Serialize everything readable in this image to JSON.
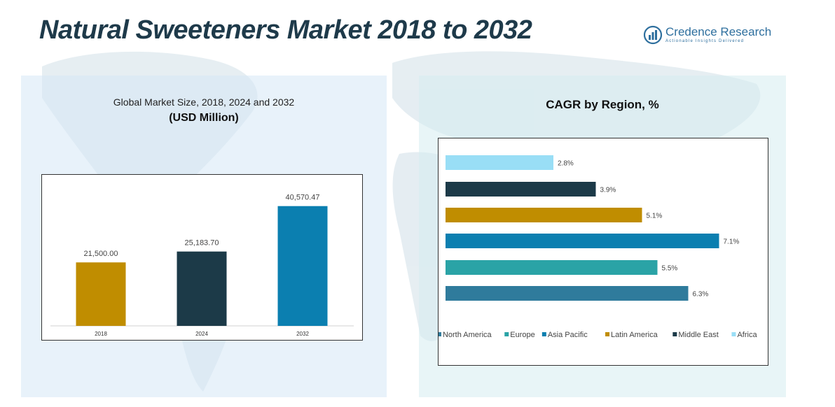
{
  "title": "Natural Sweeteners Market 2018 to 2032",
  "logo": {
    "name": "Credence Research",
    "tagline": "Actionable Insights Delivered",
    "icon": "bar-chart-logo-icon"
  },
  "colors": {
    "title": "#1e3a4a",
    "gold": "#c08d00",
    "navy": "#1c3a48",
    "blue": "#0b7fb0",
    "teal": "#2aa3a6",
    "steel": "#2f7b9c",
    "sky": "#99def6"
  },
  "left_panel": {
    "subtitle": "Global Market Size, 2018, 2024 and 2032",
    "unit": "(USD Million)"
  },
  "right_panel": {
    "title": "CAGR by Region, %"
  },
  "chart_data": [
    {
      "type": "bar",
      "title": "Global Market Size, 2018, 2024 and 2032",
      "subtitle": "(USD Million)",
      "categories": [
        "2018",
        "2024",
        "2032"
      ],
      "values": [
        21500.0,
        25183.7,
        40570.47
      ],
      "value_labels": [
        "21,500.00",
        "25,183.70",
        "40,570.47"
      ],
      "colors": [
        "#c08d00",
        "#1c3a48",
        "#0b7fb0"
      ],
      "ylim": [
        0,
        45000
      ],
      "grid": false
    },
    {
      "type": "bar",
      "orientation": "horizontal",
      "title": "CAGR by Region, %",
      "categories": [
        "Africa",
        "Middle East",
        "Latin America",
        "Asia Pacific",
        "Europe",
        "North America"
      ],
      "values": [
        2.8,
        3.9,
        5.1,
        7.1,
        5.5,
        6.3
      ],
      "value_labels": [
        "2.8%",
        "3.9%",
        "5.1%",
        "7.1%",
        "5.5%",
        "6.3%"
      ],
      "colors": [
        "#99def6",
        "#1c3a48",
        "#c08d00",
        "#0b7fb0",
        "#2aa3a6",
        "#2f7b9c"
      ],
      "legend": {
        "placement": "bottom",
        "entries": [
          "North America",
          "Europe",
          "Asia Pacific",
          "Latin America",
          "Middle East",
          "Africa"
        ],
        "colors": [
          "#2f7b9c",
          "#2aa3a6",
          "#0b7fb0",
          "#c08d00",
          "#1c3a48",
          "#99def6"
        ]
      },
      "xlim": [
        0,
        7.4
      ],
      "grid": false
    }
  ]
}
